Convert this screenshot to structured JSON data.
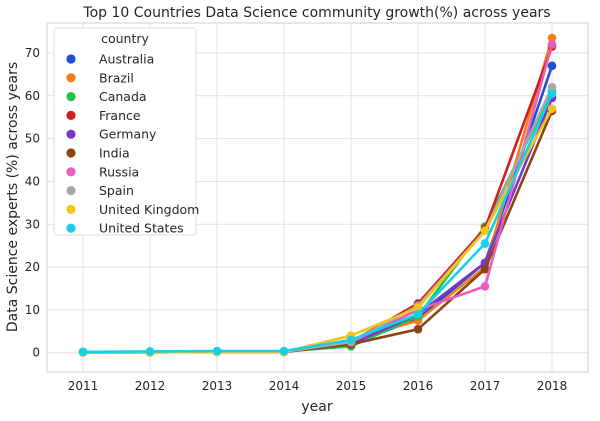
{
  "chart_data": {
    "type": "line",
    "title": "Top 10 Countries Data Science community growth(%) across years",
    "xlabel": "year",
    "ylabel": "Data Science experts (%) across years",
    "x": [
      "2011",
      "2012",
      "2013",
      "2014",
      "2015",
      "2016",
      "2017",
      "2018"
    ],
    "yticks": [
      "0",
      "10",
      "20",
      "30",
      "40",
      "50",
      "60",
      "70"
    ],
    "ylim": [
      -4.5,
      77
    ],
    "grid": true,
    "legend": {
      "title": "country",
      "placement": "top-left"
    },
    "series": [
      {
        "name": "Australia",
        "color": "#1f4ed9",
        "values": [
          0.1,
          0.1,
          0.2,
          0.2,
          2.0,
          8.0,
          21.0,
          67.0
        ]
      },
      {
        "name": "Brazil",
        "color": "#f57d1a",
        "values": [
          0.2,
          0.2,
          0.3,
          0.3,
          3.0,
          7.5,
          20.0,
          73.5
        ]
      },
      {
        "name": "Canada",
        "color": "#22c244",
        "values": [
          0.1,
          0.1,
          0.2,
          0.3,
          1.5,
          8.5,
          29.5,
          61.0
        ]
      },
      {
        "name": "France",
        "color": "#d41d1d",
        "values": [
          0.1,
          0.2,
          0.2,
          0.2,
          2.5,
          11.5,
          29.0,
          71.5
        ]
      },
      {
        "name": "Germany",
        "color": "#7b35cc",
        "values": [
          0.2,
          0.2,
          0.3,
          0.3,
          2.0,
          9.0,
          21.0,
          59.5
        ]
      },
      {
        "name": "India",
        "color": "#8b4513",
        "values": [
          0.1,
          0.1,
          0.2,
          0.2,
          2.0,
          5.5,
          19.5,
          56.5
        ]
      },
      {
        "name": "Russia",
        "color": "#e55ec0",
        "values": [
          0.1,
          0.2,
          0.2,
          0.2,
          2.5,
          10.0,
          15.5,
          72.0
        ]
      },
      {
        "name": "Spain",
        "color": "#a8a8a8",
        "values": [
          0.1,
          0.1,
          0.2,
          0.2,
          2.5,
          11.0,
          28.5,
          62.0
        ]
      },
      {
        "name": "United Kingdom",
        "color": "#f2c518",
        "values": [
          0.1,
          0.1,
          0.2,
          0.2,
          4.0,
          10.5,
          28.5,
          57.0
        ]
      },
      {
        "name": "United States",
        "color": "#17d0e8",
        "values": [
          0.2,
          0.3,
          0.4,
          0.4,
          3.0,
          9.0,
          25.5,
          60.5
        ]
      }
    ]
  }
}
